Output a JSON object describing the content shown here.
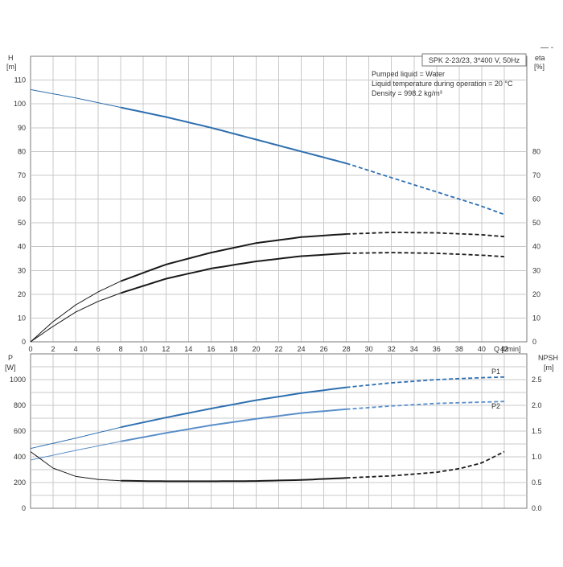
{
  "corner_mark": "— -",
  "info_box": {
    "title": "SPK 2-23/23, 3*400 V, 50Hz",
    "lines": [
      "Pumped liquid = Water",
      "Liquid temperature during operation = 20 °C",
      "Density = 998.2 kg/m³"
    ]
  },
  "colors": {
    "blue": "#2e6fb0",
    "blue_light": "#5b8fc9",
    "black": "#1a1a1a",
    "grid": "#c8c8c8"
  },
  "chart_data": [
    {
      "type": "line",
      "panel": "top",
      "xlabel": "Q [l/min]",
      "xlim": [
        0,
        42
      ],
      "x_ticks": [
        0,
        2,
        4,
        6,
        8,
        10,
        12,
        14,
        16,
        18,
        20,
        22,
        24,
        26,
        28,
        30,
        32,
        34,
        36,
        38,
        40,
        42
      ],
      "ylabel_left": [
        "H",
        "[m]"
      ],
      "ylim_left": [
        0,
        120
      ],
      "y_ticks_left": [
        0,
        10,
        20,
        30,
        40,
        50,
        60,
        70,
        80,
        90,
        100,
        110
      ],
      "ylabel_right": [
        "eta",
        "[%]"
      ],
      "ylim_right": [
        0,
        120
      ],
      "y_ticks_right": [
        0,
        10,
        20,
        30,
        40,
        50,
        60,
        70,
        80
      ],
      "grid": true,
      "series": [
        {
          "key": "H",
          "axis": "left",
          "color": "#2e6fb0",
          "x": [
            0,
            4,
            8,
            12,
            16,
            20,
            24,
            28,
            32,
            36,
            40,
            42
          ],
          "y": [
            106,
            102.5,
            98.5,
            94.5,
            90,
            85,
            80,
            75,
            69,
            63,
            57,
            53.5
          ],
          "solid_from": 8,
          "solid_to": 28
        },
        {
          "key": "eta_upper",
          "axis": "right",
          "color": "#1a1a1a",
          "x": [
            0,
            2,
            4,
            6,
            8,
            12,
            16,
            20,
            24,
            28,
            32,
            36,
            40,
            42
          ],
          "y": [
            0,
            8.5,
            15.5,
            21,
            25.5,
            32.5,
            37.5,
            41.5,
            44,
            45.3,
            46,
            45.8,
            45,
            44.2
          ],
          "solid_from": 8,
          "solid_to": 28
        },
        {
          "key": "eta_lower",
          "axis": "right",
          "color": "#1a1a1a",
          "x": [
            0,
            2,
            4,
            6,
            8,
            12,
            16,
            20,
            24,
            28,
            32,
            36,
            40,
            42
          ],
          "y": [
            0,
            6.5,
            12.5,
            17,
            20.5,
            26.5,
            30.8,
            33.8,
            36,
            37.2,
            37.5,
            37.2,
            36.4,
            35.8
          ],
          "solid_from": 8,
          "solid_to": 28
        }
      ]
    },
    {
      "type": "line",
      "panel": "bottom",
      "xlim": [
        0,
        42
      ],
      "ylabel_left": [
        "P",
        "[W]"
      ],
      "ylim_left": [
        0,
        1200
      ],
      "y_ticks_left": [
        0,
        200,
        400,
        600,
        800,
        1000
      ],
      "ylabel_right": [
        "NPSH",
        "[m]"
      ],
      "ylim_right": [
        0,
        3
      ],
      "y_ticks_right": [
        "0.0",
        "0.5",
        "1.0",
        "1.5",
        "2.0",
        "2.5"
      ],
      "grid": true,
      "series": [
        {
          "key": "P1",
          "name": "P1",
          "axis": "left",
          "color": "#2e6fb0",
          "x": [
            0,
            4,
            8,
            12,
            16,
            20,
            24,
            28,
            32,
            36,
            40,
            42
          ],
          "y": [
            465,
            545,
            630,
            705,
            775,
            840,
            895,
            940,
            975,
            1000,
            1015,
            1020
          ],
          "solid_from": 8,
          "solid_to": 28
        },
        {
          "key": "P2",
          "name": "P2",
          "axis": "left",
          "color": "#5b8fc9",
          "x": [
            0,
            4,
            8,
            12,
            16,
            20,
            24,
            28,
            32,
            36,
            40,
            42
          ],
          "y": [
            375,
            450,
            520,
            585,
            645,
            695,
            740,
            770,
            795,
            815,
            825,
            830
          ],
          "solid_from": 8,
          "solid_to": 28
        },
        {
          "key": "NPSH",
          "axis": "right",
          "color": "#1a1a1a",
          "x": [
            0,
            2,
            4,
            6,
            8,
            12,
            16,
            20,
            24,
            28,
            32,
            36,
            38,
            40,
            42
          ],
          "y": [
            1.1,
            0.78,
            0.62,
            0.56,
            0.535,
            0.525,
            0.525,
            0.53,
            0.55,
            0.59,
            0.63,
            0.7,
            0.77,
            0.88,
            1.1
          ],
          "solid_from": 8,
          "solid_to": 28
        }
      ]
    }
  ]
}
